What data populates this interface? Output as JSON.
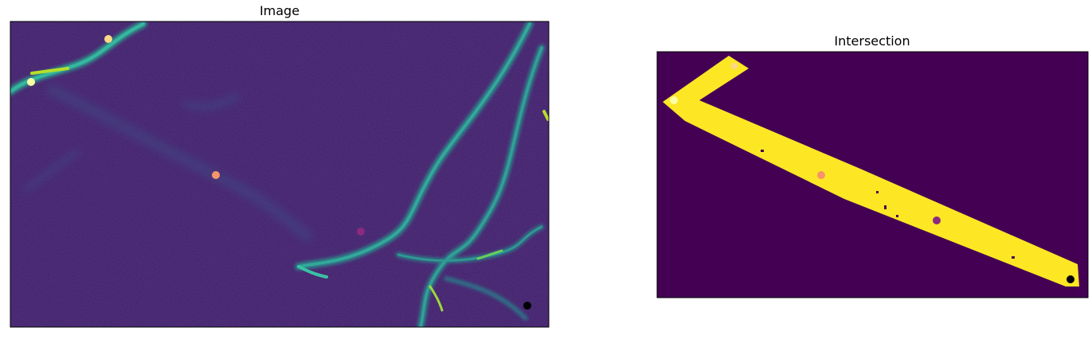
{
  "panels": {
    "image": {
      "title": "Image"
    },
    "intersection": {
      "title": "Intersection"
    }
  },
  "colors": {
    "background_viridis_low": "#440154",
    "image_background": "#3d1a6b",
    "filament_mid": "#2a8a8c",
    "filament_bright": "#3bb9a8",
    "filament_peak": "#b5de2b",
    "mask_yellow": "#fde725",
    "marker_palette": [
      "#fcffa4",
      "#fbd78a",
      "#f6946b",
      "#8c2981",
      "#000004"
    ]
  }
}
